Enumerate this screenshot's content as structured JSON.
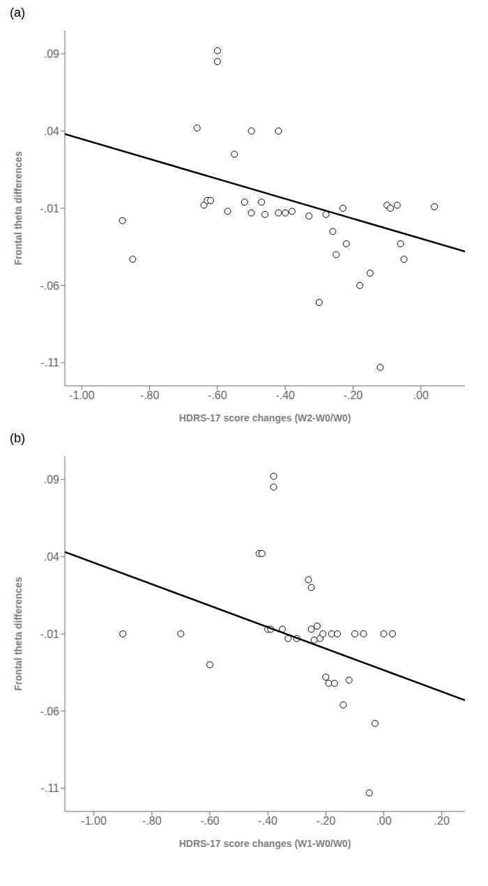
{
  "chart_data": [
    {
      "type": "scatter",
      "title": "(a)",
      "xlabel": "HDRS-17 score changes (W2-W0/W0)",
      "ylabel": "Frontal theta differences",
      "xlim": [
        -1.05,
        0.13
      ],
      "ylim": [
        -0.125,
        0.105
      ],
      "xticks": [
        {
          "value": -1.0,
          "label": "-1.00"
        },
        {
          "value": -0.8,
          "label": "-.80"
        },
        {
          "value": -0.6,
          "label": "-.60"
        },
        {
          "value": -0.4,
          "label": "-.40"
        },
        {
          "value": -0.2,
          "label": "-.20"
        },
        {
          "value": 0.0,
          "label": ".00"
        }
      ],
      "yticks": [
        {
          "value": -0.11,
          "label": "-.11"
        },
        {
          "value": -0.06,
          "label": "-.06"
        },
        {
          "value": -0.01,
          "label": "-.01"
        },
        {
          "value": 0.04,
          "label": ".04"
        },
        {
          "value": 0.09,
          "label": ".09"
        }
      ],
      "grid": false,
      "series": [
        {
          "type": "scatter",
          "marker": "circle",
          "color": "black",
          "x": [
            -0.88,
            -0.85,
            -0.66,
            -0.64,
            -0.63,
            -0.62,
            -0.6,
            -0.6,
            -0.57,
            -0.55,
            -0.52,
            -0.5,
            -0.5,
            -0.47,
            -0.46,
            -0.42,
            -0.42,
            -0.4,
            -0.38,
            -0.33,
            -0.3,
            -0.28,
            -0.26,
            -0.25,
            -0.23,
            -0.22,
            -0.18,
            -0.15,
            -0.12,
            -0.1,
            -0.09,
            -0.07,
            -0.06,
            -0.05,
            0.04
          ],
          "values": [
            -0.018,
            -0.043,
            0.042,
            -0.008,
            -0.005,
            -0.005,
            0.092,
            0.085,
            -0.012,
            0.025,
            -0.006,
            -0.013,
            0.04,
            -0.006,
            -0.014,
            0.04,
            -0.013,
            -0.013,
            -0.012,
            -0.015,
            -0.071,
            -0.014,
            -0.025,
            -0.04,
            -0.01,
            -0.033,
            -0.06,
            -0.052,
            -0.113,
            -0.008,
            -0.01,
            -0.008,
            -0.033,
            -0.043,
            -0.009
          ]
        },
        {
          "type": "line",
          "line_style": "solid",
          "color": "black",
          "x": [
            -1.05,
            0.13
          ],
          "values": [
            0.038,
            -0.038
          ]
        }
      ]
    },
    {
      "type": "scatter",
      "title": "(b)",
      "xlabel": "HDRS-17 score changes (W1-W0/W0)",
      "ylabel": "Frontal theta differences",
      "xlim": [
        -1.1,
        0.28
      ],
      "ylim": [
        -0.125,
        0.105
      ],
      "xticks": [
        {
          "value": -1.0,
          "label": "-1.00"
        },
        {
          "value": -0.8,
          "label": "-.80"
        },
        {
          "value": -0.6,
          "label": "-.60"
        },
        {
          "value": -0.4,
          "label": "-.40"
        },
        {
          "value": -0.2,
          "label": "-.20"
        },
        {
          "value": 0.0,
          "label": ".00"
        },
        {
          "value": 0.2,
          "label": ".20"
        }
      ],
      "yticks": [
        {
          "value": -0.11,
          "label": "-.11"
        },
        {
          "value": -0.06,
          "label": "-.06"
        },
        {
          "value": -0.01,
          "label": "-.01"
        },
        {
          "value": 0.04,
          "label": ".04"
        },
        {
          "value": 0.09,
          "label": ".09"
        }
      ],
      "grid": false,
      "series": [
        {
          "type": "scatter",
          "marker": "circle",
          "color": "black",
          "x": [
            -0.9,
            -0.7,
            -0.6,
            -0.43,
            -0.42,
            -0.4,
            -0.39,
            -0.38,
            -0.38,
            -0.35,
            -0.33,
            -0.3,
            -0.26,
            -0.25,
            -0.25,
            -0.24,
            -0.23,
            -0.22,
            -0.21,
            -0.2,
            -0.19,
            -0.18,
            -0.17,
            -0.16,
            -0.14,
            -0.12,
            -0.1,
            -0.07,
            -0.05,
            -0.03,
            0.0,
            0.03
          ],
          "values": [
            -0.01,
            -0.01,
            -0.03,
            0.042,
            0.042,
            -0.007,
            -0.007,
            0.085,
            0.092,
            -0.007,
            -0.013,
            -0.013,
            0.025,
            0.02,
            -0.007,
            -0.014,
            -0.005,
            -0.013,
            -0.01,
            -0.038,
            -0.042,
            -0.01,
            -0.042,
            -0.01,
            -0.056,
            -0.04,
            -0.01,
            -0.01,
            -0.113,
            -0.068,
            -0.01,
            -0.01
          ]
        },
        {
          "type": "line",
          "line_style": "solid",
          "color": "black",
          "x": [
            -1.1,
            0.28
          ],
          "values": [
            0.043,
            -0.053
          ]
        }
      ]
    }
  ]
}
